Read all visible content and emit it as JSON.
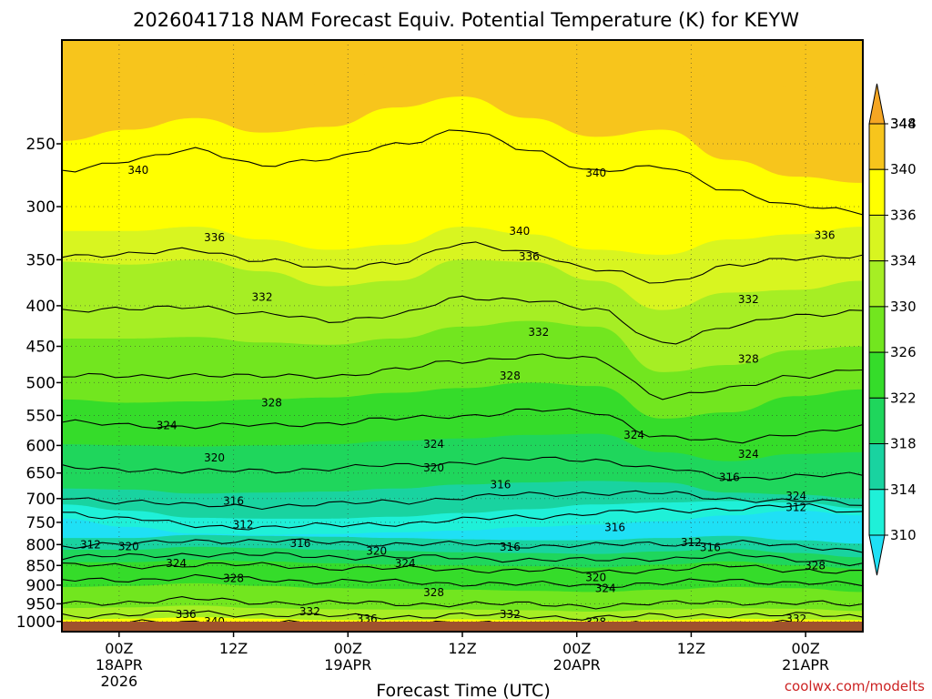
{
  "chart_data": {
    "type": "contour",
    "title": "2026041718 NAM Forecast Equiv. Potential Temperature (K) for KEYW",
    "xlabel": "Forecast Time (UTC)",
    "ylabel": "",
    "credit": "coolwx.com/modelts",
    "y_axis": {
      "unit": "hPa",
      "scale": "pressure",
      "range": [
        1030,
        185
      ],
      "ticks": [
        250,
        300,
        350,
        400,
        450,
        500,
        550,
        600,
        650,
        700,
        750,
        800,
        850,
        900,
        950,
        1000
      ]
    },
    "x_axis": {
      "unit": "hours from 2026041718",
      "range": [
        0,
        84
      ],
      "ticks": [
        {
          "hour": 6,
          "lines": [
            "00Z",
            "18APR",
            "2026"
          ]
        },
        {
          "hour": 18,
          "lines": [
            "12Z"
          ]
        },
        {
          "hour": 30,
          "lines": [
            "00Z",
            "19APR"
          ]
        },
        {
          "hour": 42,
          "lines": [
            "12Z"
          ]
        },
        {
          "hour": 54,
          "lines": [
            "00Z",
            "20APR"
          ]
        },
        {
          "hour": 66,
          "lines": [
            "12Z"
          ]
        },
        {
          "hour": 78,
          "lines": [
            "00Z",
            "21APR"
          ]
        }
      ]
    },
    "colorbar": {
      "unit": "K",
      "levels": [
        348,
        344,
        340,
        336,
        334,
        330,
        326,
        322,
        318,
        314,
        310
      ],
      "colors": [
        "#f5a623",
        "#f7c51c",
        "#ffff00",
        "#d8f520",
        "#a6ee24",
        "#72e61f",
        "#35dc2a",
        "#1fd65c",
        "#19d3a0",
        "#1ff0d8",
        "#1fe0f5"
      ]
    },
    "bands": [
      {
        "level_K": 344,
        "pressures_hPa": [
          205,
          205,
          200,
          212,
          210,
          200,
          195,
          198,
          200,
          198,
          208,
          212,
          215
        ]
      },
      {
        "level_K": 340,
        "pressures_hPa": [
          248,
          240,
          232,
          242,
          238,
          225,
          218,
          232,
          245,
          240,
          262,
          275,
          280
        ]
      },
      {
        "level_K": 336,
        "pressures_hPa": [
          322,
          322,
          318,
          330,
          340,
          335,
          318,
          325,
          340,
          345,
          330,
          325,
          318
        ]
      },
      {
        "level_K": 334,
        "pressures_hPa": [
          352,
          355,
          350,
          362,
          378,
          372,
          350,
          352,
          372,
          405,
          385,
          382,
          372
        ]
      },
      {
        "level_K": 330,
        "pressures_hPa": [
          440,
          440,
          438,
          445,
          448,
          440,
          425,
          418,
          425,
          485,
          475,
          455,
          450
        ]
      },
      {
        "level_K": 326,
        "pressures_hPa": [
          525,
          530,
          528,
          525,
          522,
          515,
          508,
          500,
          505,
          555,
          545,
          520,
          510
        ]
      },
      {
        "level_K": 322,
        "pressures_hPa": [
          598,
          600,
          602,
          600,
          598,
          592,
          588,
          582,
          580,
          612,
          628,
          615,
          612
        ]
      },
      {
        "level_K": 318,
        "pressures_hPa": [
          680,
          682,
          690,
          688,
          686,
          680,
          672,
          668,
          665,
          668,
          688,
          692,
          700
        ]
      },
      {
        "level_K": 314,
        "pressures_hPa": [
          712,
          725,
          740,
          742,
          742,
          738,
          730,
          722,
          712,
          708,
          705,
          708,
          720
        ]
      },
      {
        "level_K": 310,
        "pressures_hPa": [
          742,
          760,
          775,
          778,
          776,
          772,
          768,
          760,
          755,
          748,
          735,
          725,
          735
        ]
      }
    ],
    "band_hours": [
      0,
      7,
      14,
      21,
      28,
      35,
      42,
      49,
      56,
      63,
      70,
      77,
      84
    ],
    "contours": [
      {
        "level_K": 340,
        "pressures_hPa": [
          270,
          262,
          255,
          265,
          262,
          250,
          240,
          255,
          270,
          268,
          285,
          300,
          305
        ]
      },
      {
        "level_K": 336,
        "pressures_hPa": [
          345,
          345,
          340,
          350,
          360,
          352,
          335,
          342,
          360,
          375,
          355,
          350,
          345
        ]
      },
      {
        "level_K": 332,
        "pressures_hPa": [
          405,
          405,
          400,
          410,
          418,
          410,
          392,
          392,
          405,
          445,
          425,
          412,
          405
        ]
      },
      {
        "level_K": 328,
        "pressures_hPa": [
          490,
          492,
          488,
          492,
          490,
          482,
          470,
          462,
          468,
          520,
          510,
          490,
          480
        ]
      },
      {
        "level_K": 324,
        "pressures_hPa": [
          562,
          565,
          568,
          566,
          562,
          556,
          550,
          542,
          545,
          585,
          595,
          578,
          570
        ]
      },
      {
        "level_K": 320,
        "pressures_hPa": [
          640,
          642,
          648,
          645,
          642,
          636,
          630,
          625,
          625,
          642,
          660,
          655,
          655
        ]
      },
      {
        "level_K": 316,
        "pressures_hPa": [
          698,
          705,
          715,
          715,
          712,
          706,
          698,
          692,
          688,
          690,
          700,
          705,
          712
        ]
      },
      {
        "level_K": 312,
        "pressures_hPa": [
          728,
          742,
          758,
          760,
          758,
          752,
          745,
          738,
          730,
          726,
          720,
          716,
          728
        ]
      },
      {
        "level_K": 316,
        "pressures_hPa": [
          802,
          800,
          790,
          792,
          795,
          798,
          800,
          802,
          802,
          798,
          795,
          805,
          812
        ]
      },
      {
        "level_K": 320,
        "pressures_hPa": [
          830,
          828,
          822,
          825,
          828,
          830,
          832,
          835,
          838,
          832,
          825,
          835,
          845
        ]
      },
      {
        "level_K": 324,
        "pressures_hPa": [
          850,
          852,
          848,
          850,
          855,
          858,
          860,
          862,
          866,
          860,
          852,
          860,
          868
        ]
      },
      {
        "level_K": 328,
        "pressures_hPa": [
          888,
          885,
          880,
          885,
          890,
          892,
          895,
          898,
          900,
          895,
          888,
          892,
          900
        ]
      },
      {
        "level_K": 332,
        "pressures_hPa": [
          948,
          945,
          938,
          945,
          948,
          950,
          950,
          952,
          955,
          950,
          945,
          948,
          955
        ]
      },
      {
        "level_K": 336,
        "pressures_hPa": [
          982,
          980,
          975,
          980,
          985,
          985,
          982,
          985,
          988,
          985,
          980,
          982,
          985
        ]
      },
      {
        "level_K": 340,
        "pressures_hPa": [
          1008,
          1005,
          1002,
          1005,
          1008,
          1008,
          1006,
          1008,
          1010,
          1008,
          1005,
          1006,
          1008
        ]
      }
    ],
    "contour_labels": [
      {
        "text": "340",
        "hour": 8,
        "p": 270
      },
      {
        "text": "340",
        "hour": 56,
        "p": 272
      },
      {
        "text": "336",
        "hour": 16,
        "p": 328
      },
      {
        "text": "340",
        "hour": 48,
        "p": 322
      },
      {
        "text": "336",
        "hour": 49,
        "p": 347
      },
      {
        "text": "336",
        "hour": 80,
        "p": 326
      },
      {
        "text": "332",
        "hour": 21,
        "p": 390
      },
      {
        "text": "332",
        "hour": 50,
        "p": 432
      },
      {
        "text": "332",
        "hour": 72,
        "p": 393
      },
      {
        "text": "328",
        "hour": 47,
        "p": 490
      },
      {
        "text": "328",
        "hour": 72,
        "p": 467
      },
      {
        "text": "328",
        "hour": 22,
        "p": 530
      },
      {
        "text": "324",
        "hour": 11,
        "p": 566
      },
      {
        "text": "324",
        "hour": 39,
        "p": 598
      },
      {
        "text": "324",
        "hour": 60,
        "p": 582
      },
      {
        "text": "324",
        "hour": 72,
        "p": 615
      },
      {
        "text": "324",
        "hour": 77,
        "p": 695
      },
      {
        "text": "320",
        "hour": 16,
        "p": 622
      },
      {
        "text": "320",
        "hour": 39,
        "p": 640
      },
      {
        "text": "320",
        "hour": 33,
        "p": 815
      },
      {
        "text": "320",
        "hour": 56,
        "p": 880
      },
      {
        "text": "316",
        "hour": 46,
        "p": 672
      },
      {
        "text": "316",
        "hour": 18,
        "p": 705
      },
      {
        "text": "316",
        "hour": 25,
        "p": 797
      },
      {
        "text": "316",
        "hour": 47,
        "p": 806
      },
      {
        "text": "316",
        "hour": 58,
        "p": 761
      },
      {
        "text": "316",
        "hour": 68,
        "p": 807
      },
      {
        "text": "316",
        "hour": 70,
        "p": 658
      },
      {
        "text": "312",
        "hour": 19,
        "p": 755
      },
      {
        "text": "312",
        "hour": 3,
        "p": 800
      },
      {
        "text": "312",
        "hour": 66,
        "p": 795
      },
      {
        "text": "312",
        "hour": 77,
        "p": 718
      },
      {
        "text": "320",
        "hour": 7,
        "p": 805
      },
      {
        "text": "324",
        "hour": 12,
        "p": 845
      },
      {
        "text": "324",
        "hour": 36,
        "p": 845
      },
      {
        "text": "324",
        "hour": 57,
        "p": 909
      },
      {
        "text": "328",
        "hour": 18,
        "p": 882
      },
      {
        "text": "328",
        "hour": 39,
        "p": 920
      },
      {
        "text": "328",
        "hour": 56,
        "p": 1002
      },
      {
        "text": "328",
        "hour": 79,
        "p": 850
      },
      {
        "text": "332",
        "hour": 26,
        "p": 972
      },
      {
        "text": "332",
        "hour": 47,
        "p": 980
      },
      {
        "text": "332",
        "hour": 77,
        "p": 992
      },
      {
        "text": "336",
        "hour": 13,
        "p": 980
      },
      {
        "text": "336",
        "hour": 32,
        "p": 992
      },
      {
        "text": "340",
        "hour": 16,
        "p": 1000
      }
    ]
  }
}
